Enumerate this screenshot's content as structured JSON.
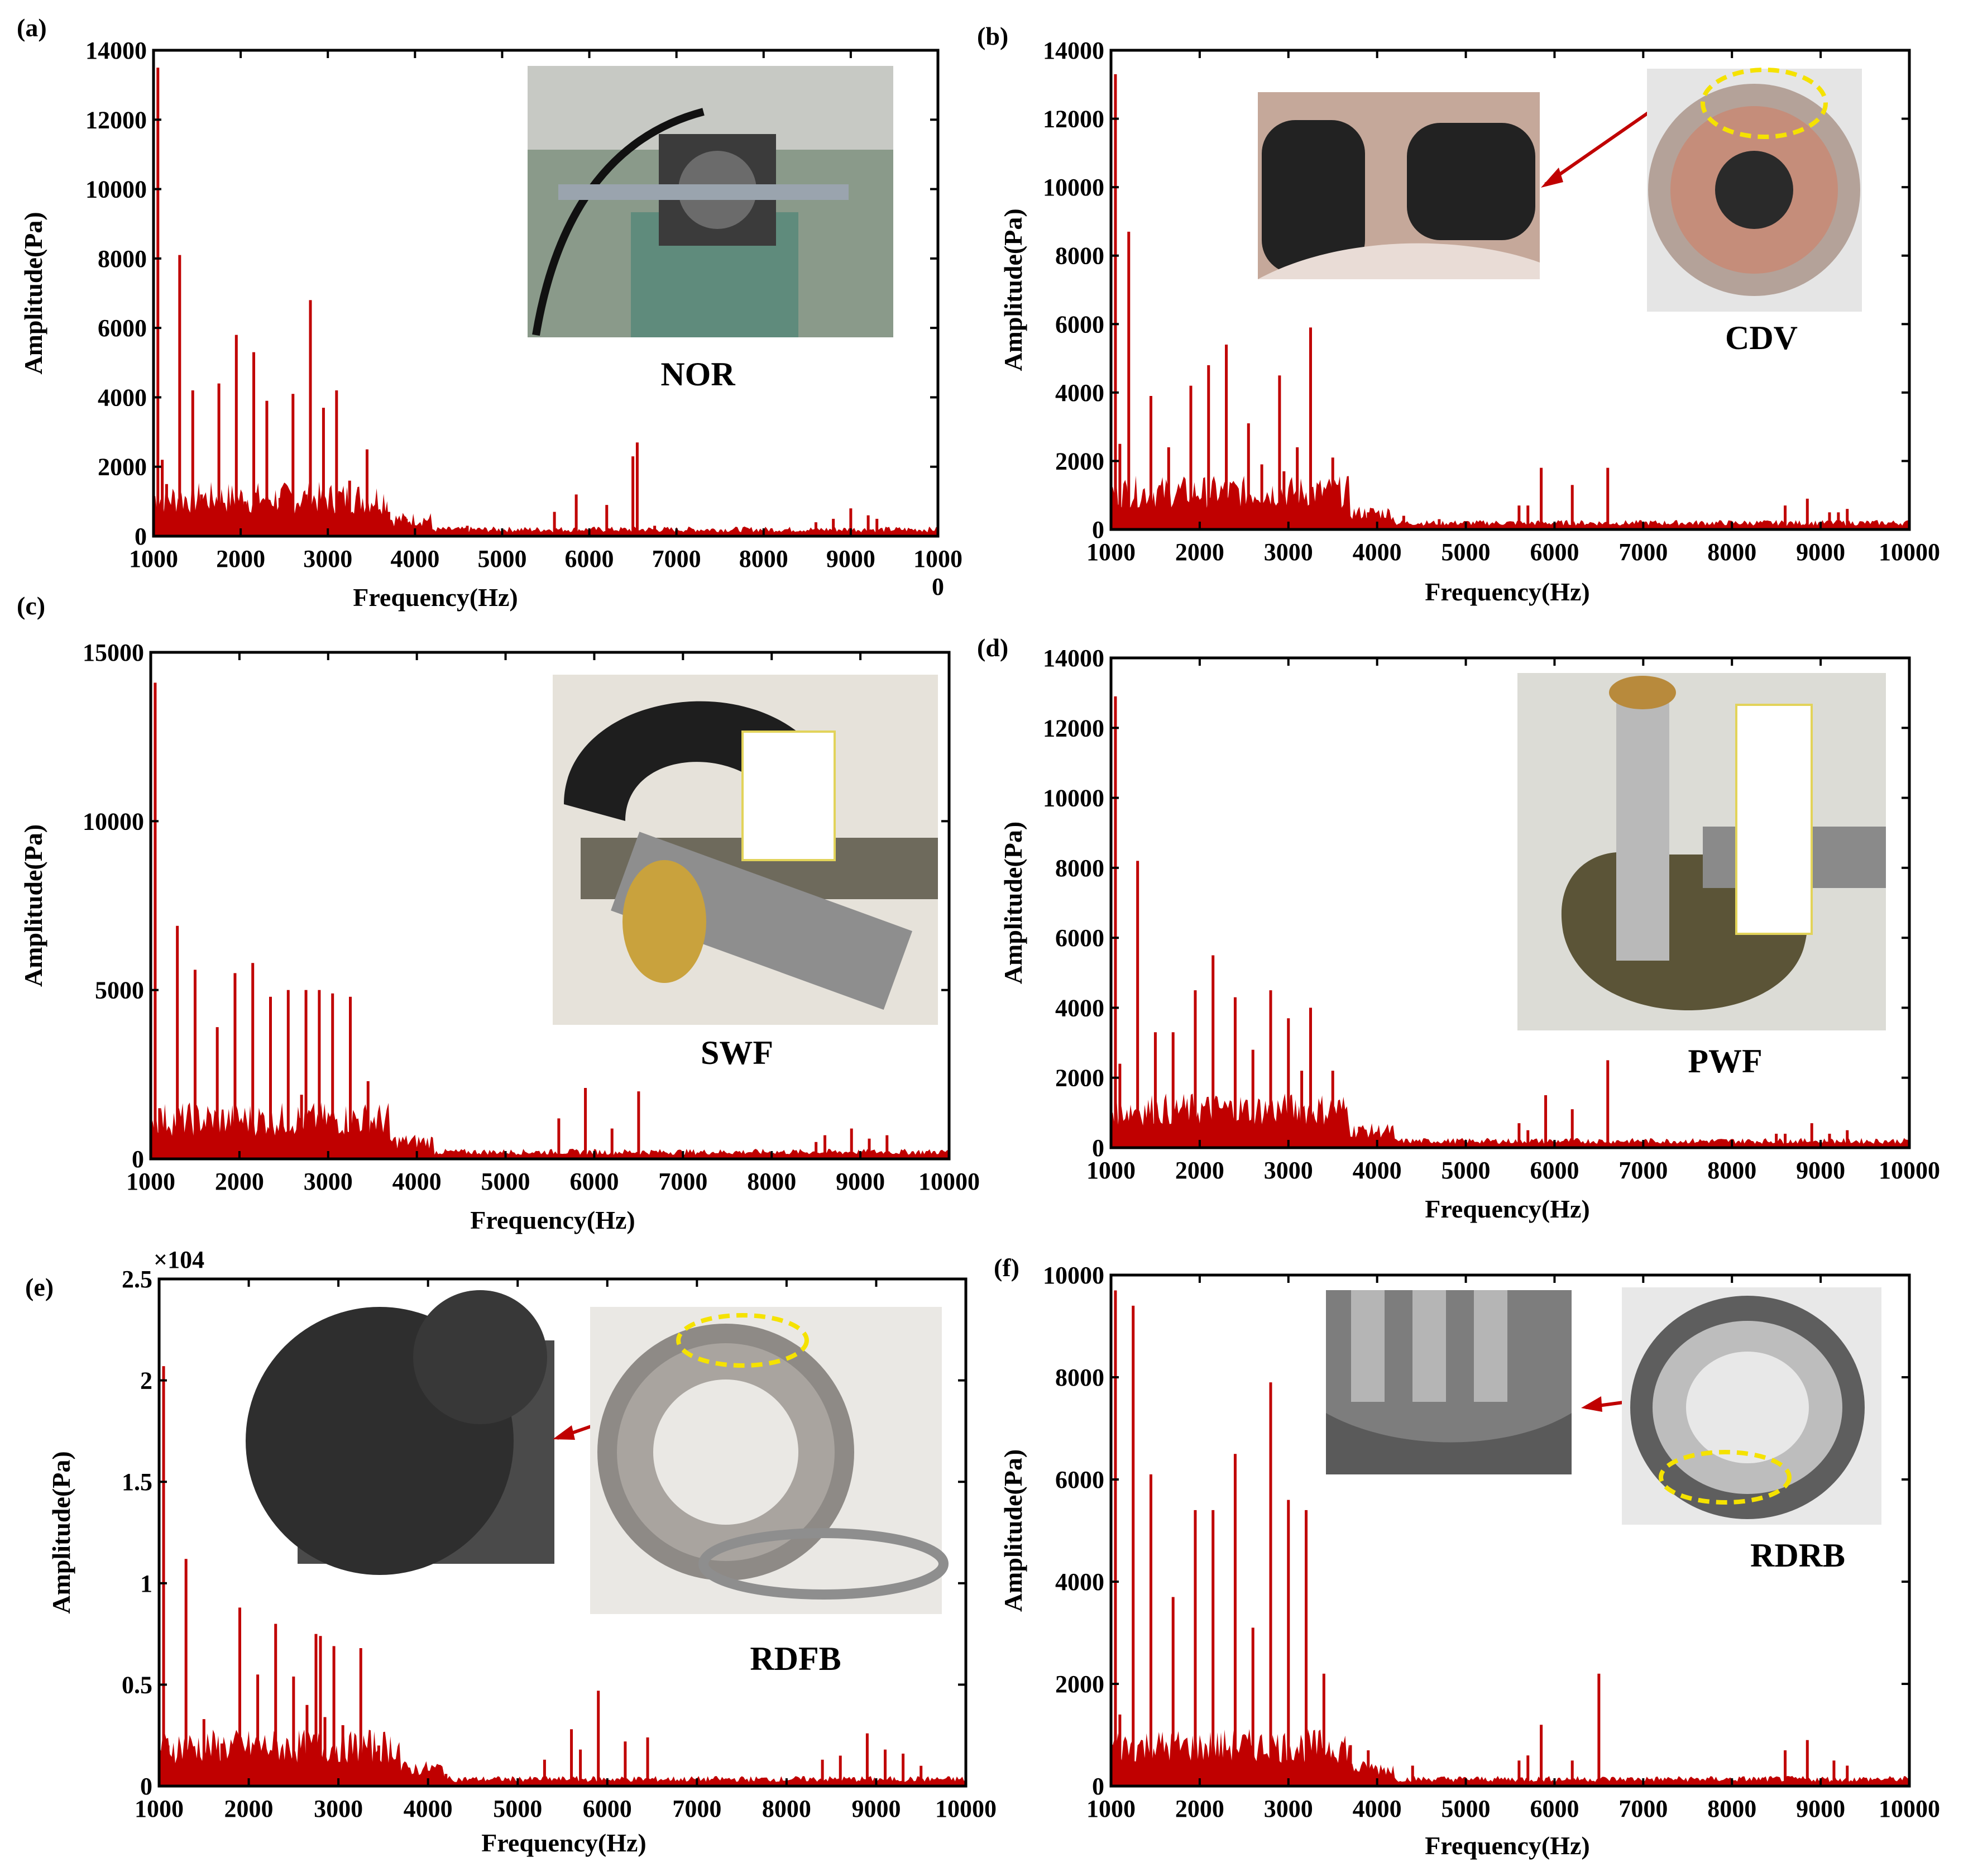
{
  "colors": {
    "series": "#c00000",
    "frame": "#000000",
    "background": "#ffffff"
  },
  "x_axis_title": "Frequency(Hz)",
  "y_axis_title": "Amplitude(Pa)",
  "chart_data": [
    {
      "panel": "(a)",
      "inset_label": "NOR",
      "type": "bar",
      "xlim": [
        1000,
        10000
      ],
      "ylim": [
        0,
        14000
      ],
      "yticks": [
        "0",
        "2000",
        "4000",
        "6000",
        "8000",
        "10000",
        "12000",
        "14000"
      ],
      "xticks": [
        "1000",
        "2000",
        "3000",
        "4000",
        "5000",
        "6000",
        "7000",
        "8000",
        "9000",
        "1000\n0"
      ],
      "xlabel": "Frequency(Hz)",
      "ylabel": "Amplitude(Pa)",
      "peaks": {
        "x": [
          1000,
          1050,
          1100,
          1150,
          1300,
          1450,
          1550,
          1750,
          1950,
          2050,
          2150,
          2300,
          2450,
          2600,
          2750,
          2800,
          2950,
          3100,
          3250,
          3450,
          3700,
          3900,
          4600,
          5600,
          5850,
          6200,
          6500,
          6550,
          6750,
          8600,
          8800,
          9000,
          9200,
          9300
        ],
        "y": [
          1600,
          13500,
          2200,
          1500,
          8100,
          4200,
          1200,
          4400,
          5800,
          1000,
          5300,
          3900,
          1100,
          4100,
          1200,
          6800,
          3700,
          4200,
          1600,
          2500,
          700,
          500,
          300,
          700,
          1200,
          900,
          2300,
          2700,
          300,
          400,
          500,
          800,
          600,
          500
        ]
      }
    },
    {
      "panel": "(b)",
      "inset_label": "CDV",
      "type": "bar",
      "xlim": [
        1000,
        10000
      ],
      "ylim": [
        0,
        14000
      ],
      "yticks": [
        "0",
        "2000",
        "4000",
        "6000",
        "8000",
        "10000",
        "12000",
        "14000"
      ],
      "xticks": [
        "1000",
        "2000",
        "3000",
        "4000",
        "5000",
        "6000",
        "7000",
        "8000",
        "9000",
        "10000"
      ],
      "xlabel": "Frequency(Hz)",
      "ylabel": "Amplitude(Pa)",
      "peaks": {
        "x": [
          1000,
          1050,
          1100,
          1200,
          1450,
          1650,
          1900,
          2100,
          2300,
          2550,
          2700,
          2900,
          2950,
          3100,
          3250,
          3500,
          3900,
          4300,
          4700,
          5600,
          5700,
          5850,
          6200,
          6600,
          8600,
          8850,
          9100,
          9200,
          9300
        ],
        "y": [
          3000,
          13300,
          2500,
          8700,
          3900,
          2400,
          4200,
          4800,
          5400,
          3100,
          1900,
          4500,
          1700,
          2400,
          5900,
          2100,
          500,
          400,
          300,
          700,
          700,
          1800,
          1300,
          1800,
          700,
          900,
          500,
          500,
          600
        ]
      }
    },
    {
      "panel": "(c)",
      "inset_label": "SWF",
      "type": "bar",
      "xlim": [
        1000,
        10000
      ],
      "ylim": [
        0,
        15000
      ],
      "yticks": [
        "0",
        "5000",
        "10000",
        "15000"
      ],
      "xticks": [
        "1000",
        "2000",
        "3000",
        "4000",
        "5000",
        "6000",
        "7000",
        "8000",
        "9000",
        "10000"
      ],
      "xlabel": "Frequency(Hz)",
      "ylabel": "Amplitude(Pa)",
      "peaks": {
        "x": [
          1000,
          1050,
          1100,
          1300,
          1500,
          1750,
          1950,
          2150,
          2350,
          2550,
          2700,
          2750,
          2900,
          3050,
          3250,
          3450,
          3600,
          5600,
          5900,
          6200,
          6500,
          8500,
          8600,
          8900,
          9100,
          9300
        ],
        "y": [
          2600,
          14100,
          1500,
          6900,
          5600,
          3900,
          5500,
          5800,
          4800,
          5000,
          1900,
          5000,
          5000,
          4900,
          4800,
          2300,
          500,
          1200,
          2100,
          900,
          2000,
          500,
          700,
          900,
          600,
          700
        ]
      }
    },
    {
      "panel": "(d)",
      "inset_label": "PWF",
      "type": "bar",
      "xlim": [
        1000,
        10000
      ],
      "ylim": [
        0,
        14000
      ],
      "yticks": [
        "0",
        "2000",
        "4000",
        "6000",
        "8000",
        "10000",
        "12000",
        "14000"
      ],
      "xticks": [
        "1000",
        "2000",
        "3000",
        "4000",
        "5000",
        "6000",
        "7000",
        "8000",
        "9000",
        "10000"
      ],
      "xlabel": "Frequency(Hz)",
      "ylabel": "Amplitude(Pa)",
      "peaks": {
        "x": [
          1000,
          1050,
          1100,
          1300,
          1500,
          1700,
          1950,
          2150,
          2400,
          2600,
          2800,
          3000,
          3150,
          3250,
          3500,
          3800,
          5600,
          5700,
          5900,
          6200,
          6600,
          8500,
          8600,
          8900,
          9100,
          9300
        ],
        "y": [
          3300,
          12900,
          2400,
          8200,
          3300,
          3300,
          4500,
          5500,
          4300,
          2800,
          4500,
          3700,
          2200,
          4000,
          2200,
          600,
          700,
          500,
          1500,
          1100,
          2500,
          400,
          400,
          700,
          400,
          500
        ]
      }
    },
    {
      "panel": "(e)",
      "inset_label": "RDFB",
      "type": "bar",
      "xlim": [
        1000,
        10000
      ],
      "ylim": [
        0,
        25000
      ],
      "yticks": [
        "0",
        "0.5",
        "1",
        "1.5",
        "2",
        "2.5"
      ],
      "y_multiplier": "×10^4",
      "xticks": [
        "1000",
        "2000",
        "3000",
        "4000",
        "5000",
        "6000",
        "7000",
        "8000",
        "9000",
        "10000"
      ],
      "xlabel": "Frequency(Hz)",
      "ylabel": "Amplitude(Pa)",
      "peaks": {
        "x": [
          1000,
          1050,
          1100,
          1300,
          1500,
          1700,
          1900,
          2100,
          2300,
          2500,
          2650,
          2750,
          2800,
          2850,
          2950,
          3050,
          3250,
          3450,
          3650,
          4200,
          5300,
          5600,
          5700,
          5900,
          6200,
          6450,
          8400,
          8600,
          8900,
          9100,
          9300,
          9500
        ],
        "y": [
          2300,
          20700,
          2000,
          11200,
          3300,
          2100,
          8800,
          5500,
          8000,
          5400,
          4000,
          7500,
          7400,
          3400,
          6900,
          3000,
          6800,
          2000,
          1300,
          600,
          1300,
          2800,
          1800,
          4700,
          2200,
          2400,
          1300,
          1500,
          2600,
          1800,
          1600,
          1000
        ]
      }
    },
    {
      "panel": "(f)",
      "inset_label": "RDRB",
      "type": "bar",
      "xlim": [
        1000,
        10000
      ],
      "ylim": [
        0,
        10000
      ],
      "yticks": [
        "0",
        "2000",
        "4000",
        "6000",
        "8000",
        "10000"
      ],
      "xticks": [
        "1000",
        "2000",
        "3000",
        "4000",
        "5000",
        "6000",
        "7000",
        "8000",
        "9000",
        "10000"
      ],
      "xlabel": "Frequency(Hz)",
      "ylabel": "Amplitude(Pa)",
      "peaks": {
        "x": [
          1000,
          1050,
          1100,
          1250,
          1450,
          1700,
          1950,
          2150,
          2400,
          2600,
          2800,
          3000,
          3200,
          3400,
          3700,
          3900,
          4400,
          5600,
          5700,
          5850,
          6200,
          6500,
          8600,
          8850,
          9150,
          9300
        ],
        "y": [
          1800,
          9700,
          1400,
          9400,
          6100,
          3700,
          5400,
          5400,
          6500,
          3100,
          7900,
          5600,
          5400,
          2200,
          800,
          700,
          400,
          500,
          600,
          1200,
          500,
          2200,
          700,
          900,
          500,
          400
        ]
      }
    }
  ]
}
